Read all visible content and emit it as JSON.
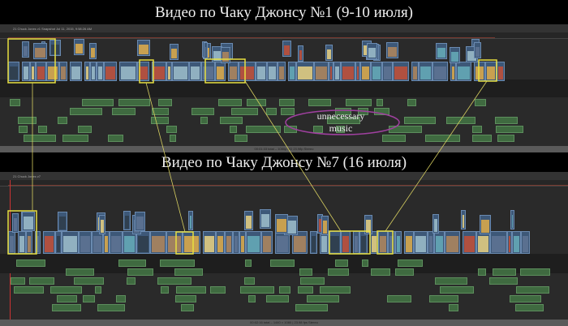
{
  "titles": {
    "top": "Видео по Чаку Джонсу №1 (9-10 июля)",
    "bottom": "Видео по Чаку Джонсу №7 (16 июля)"
  },
  "panel1": {
    "project": "21 Chuck Jones v1 Snapshot Jul 11, 2015, 9:58:26 AM",
    "status": "00:01:33 total – 1080p HD 23.98p Stereo"
  },
  "panel2": {
    "project": "21 Chuck Jones v7",
    "status": "00:02:16 total – 1440 × 1080 | 23.98 fps Stereo"
  },
  "annotation": {
    "line1": "unnecessary",
    "line2": "music"
  },
  "colors": {
    "highlight": "#e8e040",
    "ellipse": "#a040a0",
    "video_clip": "#3d5878",
    "audio_clip": "#3f6a40"
  }
}
